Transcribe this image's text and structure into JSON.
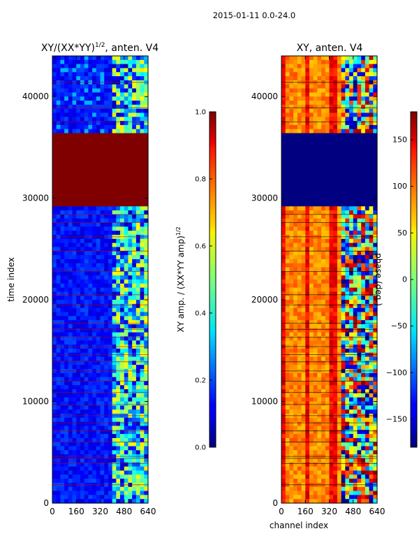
{
  "figure": {
    "suptitle": "2015-01-11 0.0-24.0"
  },
  "chart_data": [
    {
      "type": "heatmap",
      "title": "XY/(XX*YY)^{1/2}, anten. V4",
      "title_main": "XY/(XX*YY)",
      "title_sup": "1/2",
      "title_tail": ", anten. V4",
      "xlabel": "",
      "ylabel": "time index",
      "xlim": [
        0,
        640
      ],
      "ylim": [
        0,
        44000
      ],
      "xticks": [
        "0",
        "160",
        "320",
        "480",
        "640"
      ],
      "yticks": [
        "0",
        "10000",
        "20000",
        "30000",
        "40000"
      ],
      "colorbar": {
        "label": "XY amp. / (XX*YY amp)^{1/2}",
        "label_main": "XY amp. / (XX*YY amp)",
        "label_sup": "1/2",
        "range": [
          0.0,
          1.0
        ],
        "ticks": [
          "0.0",
          "0.2",
          "0.4",
          "0.6",
          "0.8",
          "1.0"
        ]
      },
      "saturated_block": {
        "time_start": 29300,
        "time_end": 36200,
        "value": 1.0
      },
      "note": "amplitude mostly low (0.0-0.2) at channels 0-400, higher structured values at channels 400-640"
    },
    {
      "type": "heatmap",
      "title": "XY, anten. V4",
      "xlabel": "channel index",
      "ylabel": "",
      "xlim": [
        0,
        640
      ],
      "ylim": [
        0,
        44000
      ],
      "xticks": [
        "0",
        "160",
        "320",
        "480",
        "640"
      ],
      "yticks": [
        "0",
        "10000",
        "20000",
        "30000",
        "40000"
      ],
      "colorbar": {
        "label": "phase (deg.)",
        "range": [
          -180,
          180
        ],
        "ticks": [
          "−150",
          "−100",
          "−50",
          "0",
          "50",
          "100",
          "150"
        ]
      },
      "saturated_block": {
        "time_start": 29300,
        "time_end": 36200,
        "value": -180
      },
      "note": "phase mostly 80-180 deg (orange/red) with striped structure; channels 400-640 mixed"
    }
  ]
}
